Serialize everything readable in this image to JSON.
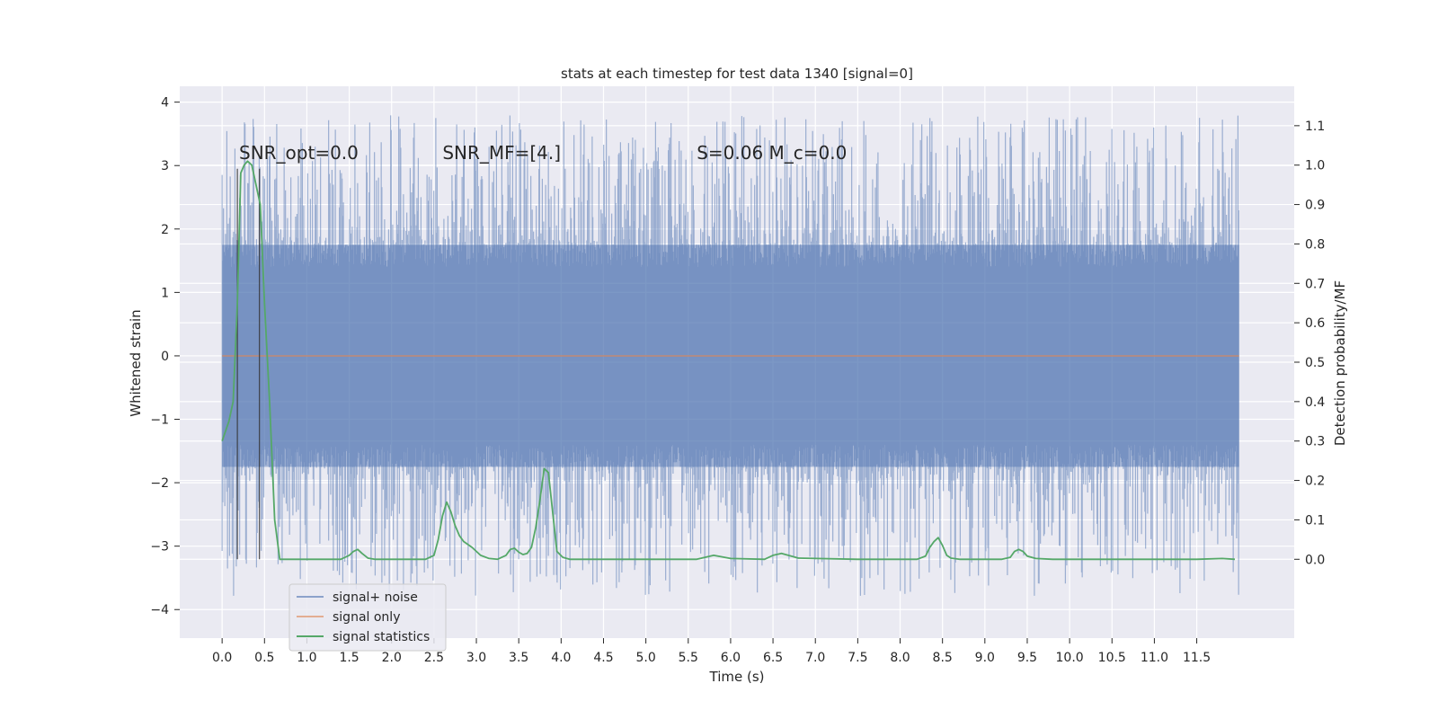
{
  "chart_data": {
    "type": "line",
    "title": "stats at each timestep for test data 1340 [signal=0]",
    "xlabel": "Time (s)",
    "ylabel": "Whitened strain",
    "y2label": "Detection probability/MF",
    "xlim": [
      -0.5,
      12.65
    ],
    "ylim": [
      -4.45,
      4.25
    ],
    "y2lim": [
      -0.2,
      1.2
    ],
    "xticks": [
      0.0,
      0.5,
      1.0,
      1.5,
      2.0,
      2.5,
      3.0,
      3.5,
      4.0,
      4.5,
      5.0,
      5.5,
      6.0,
      6.5,
      7.0,
      7.5,
      8.0,
      8.5,
      9.0,
      9.5,
      10.0,
      10.5,
      11.0,
      11.5
    ],
    "xtick_labels": [
      "0.0",
      "0.5",
      "1.0",
      "1.5",
      "2.0",
      "2.5",
      "3.0",
      "3.5",
      "4.0",
      "4.5",
      "5.0",
      "5.5",
      "6.0",
      "6.5",
      "7.0",
      "7.5",
      "8.0",
      "8.5",
      "9.0",
      "9.5",
      "10.0",
      "10.5",
      "11.0",
      "11.5"
    ],
    "yticks": [
      -4,
      -3,
      -2,
      -1,
      0,
      1,
      2,
      3,
      4
    ],
    "ytick_labels": [
      "−4",
      "−3",
      "−2",
      "−1",
      "0",
      "1",
      "2",
      "3",
      "4"
    ],
    "y2ticks": [
      0.0,
      0.1,
      0.2,
      0.3,
      0.4,
      0.5,
      0.6,
      0.7,
      0.8,
      0.9,
      1.0,
      1.1
    ],
    "y2tick_labels": [
      "0.0",
      "0.1",
      "0.2",
      "0.3",
      "0.4",
      "0.5",
      "0.6",
      "0.7",
      "0.8",
      "0.9",
      "1.0",
      "1.1"
    ],
    "grid": true,
    "legend_placement": "lower-left",
    "legend": [
      {
        "label": "signal+ noise",
        "color": "#4c72b0"
      },
      {
        "label": "signal only",
        "color": "#dd8452"
      },
      {
        "label": "signal statistics",
        "color": "#55a868"
      }
    ],
    "annotations": [
      {
        "label": "SNR_opt=0.0",
        "x": 0.2,
        "y": 3.1
      },
      {
        "label": "SNR_MF=[4.]",
        "x": 2.6,
        "y": 3.1
      },
      {
        "label": "S=0.06   M_c=0.0",
        "x": 5.6,
        "y": 3.1
      }
    ],
    "markers_x": [
      0.18,
      0.44
    ],
    "series": [
      {
        "name": "signal+ noise",
        "axis": "left",
        "kind": "noise-band",
        "x_range": [
          0.0,
          12.0
        ],
        "core_amplitude": 1.75,
        "max_amplitude": 3.9,
        "color": "#4c72b0",
        "alpha": 0.5
      },
      {
        "name": "signal only",
        "axis": "left",
        "x": [
          0.0,
          12.0
        ],
        "values": [
          0.0,
          0.0
        ],
        "color": "#dd8452"
      },
      {
        "name": "signal statistics",
        "axis": "right",
        "color": "#55a868",
        "x": [
          0.0,
          0.08,
          0.13,
          0.18,
          0.22,
          0.26,
          0.3,
          0.35,
          0.4,
          0.45,
          0.5,
          0.56,
          0.62,
          0.68,
          0.72,
          0.8,
          0.9,
          1.0,
          1.2,
          1.4,
          1.5,
          1.55,
          1.6,
          1.65,
          1.72,
          1.8,
          2.0,
          2.2,
          2.4,
          2.5,
          2.55,
          2.6,
          2.65,
          2.7,
          2.75,
          2.8,
          2.85,
          2.95,
          3.05,
          3.15,
          3.25,
          3.3,
          3.35,
          3.4,
          3.45,
          3.5,
          3.55,
          3.6,
          3.65,
          3.7,
          3.75,
          3.8,
          3.85,
          3.9,
          3.95,
          4.02,
          4.1,
          4.3,
          5.0,
          5.6,
          5.8,
          6.0,
          6.4,
          6.5,
          6.6,
          6.8,
          7.5,
          8.0,
          8.2,
          8.3,
          8.35,
          8.4,
          8.45,
          8.5,
          8.55,
          8.6,
          8.7,
          9.0,
          9.2,
          9.3,
          9.35,
          9.4,
          9.45,
          9.5,
          9.6,
          9.8,
          10.5,
          11.0,
          11.5,
          11.8,
          11.95
        ],
        "values": [
          0.3,
          0.35,
          0.4,
          0.65,
          0.98,
          1.0,
          1.01,
          1.0,
          0.95,
          0.9,
          0.65,
          0.4,
          0.1,
          0.0,
          0.0,
          0.0,
          0.0,
          0.0,
          0.0,
          0.0,
          0.01,
          0.02,
          0.025,
          0.015,
          0.003,
          0.0,
          0.0,
          0.0,
          0.0,
          0.01,
          0.05,
          0.11,
          0.145,
          0.12,
          0.085,
          0.06,
          0.045,
          0.03,
          0.01,
          0.002,
          0.0,
          0.005,
          0.01,
          0.025,
          0.028,
          0.018,
          0.012,
          0.015,
          0.03,
          0.08,
          0.15,
          0.23,
          0.22,
          0.12,
          0.02,
          0.005,
          0.0,
          0.0,
          0.0,
          0.0,
          0.01,
          0.002,
          0.0,
          0.01,
          0.015,
          0.003,
          0.0,
          0.0,
          0.0,
          0.008,
          0.03,
          0.045,
          0.055,
          0.035,
          0.01,
          0.003,
          0.0,
          0.0,
          0.0,
          0.005,
          0.02,
          0.025,
          0.02,
          0.008,
          0.002,
          0.0,
          0.0,
          0.0,
          0.0,
          0.002,
          0.0
        ]
      }
    ]
  }
}
